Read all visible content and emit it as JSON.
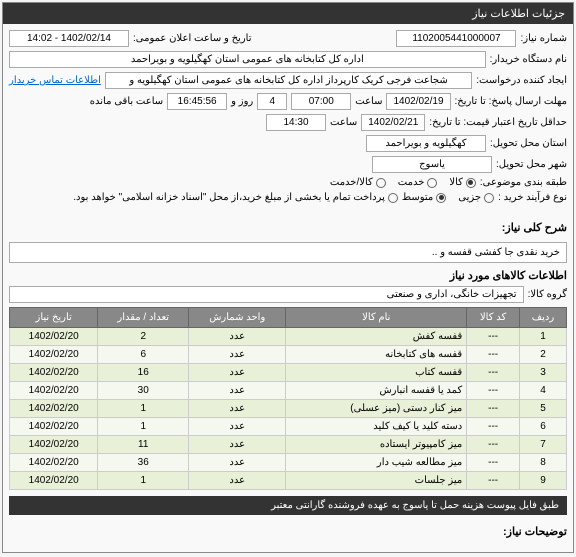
{
  "panel_title": "جزئیات اطلاعات نیاز",
  "fields": {
    "need_number_label": "شماره نیاز:",
    "need_number": "1102005441000007",
    "announce_label": "تاریخ و ساعت اعلان عمومی:",
    "announce_value": "1402/02/14 - 14:02",
    "buyer_label": "نام دستگاه خریدار:",
    "buyer_value": "اداره کل کتابخانه های عمومی استان کهگیلویه و بویراحمد",
    "creator_label": "ایجاد کننده درخواست:",
    "creator_value": "شجاعت فرجی کریک کارپرداز اداره کل کتابخانه های عمومی استان کهگیلویه و",
    "contact_link": "اطلاعات تماس خریدار",
    "deadline_label": "مهلت ارسال پاسخ: تا تاریخ:",
    "deadline_date": "1402/02/19",
    "time_label": "ساعت",
    "deadline_time": "07:00",
    "days_count": "4",
    "days_label": "روز و",
    "remaining_time": "16:45:56",
    "remaining_label": "ساعت باقی مانده",
    "validity_label": "حداقل تاریخ اعتبار قیمت: تا تاریخ:",
    "validity_date": "1402/02/21",
    "validity_time": "14:30",
    "province_label": "استان محل تحویل:",
    "province_value": "کهگیلویه و بویراحمد",
    "city_label": "شهر محل تحویل:",
    "city_value": "یاسوج",
    "category_label": "طبقه بندی موضوعی:",
    "cat_goods": "کالا",
    "cat_service": "خدمت",
    "cat_both": "کالا/خدمت",
    "process_label": "نوع فرآیند خرید :",
    "proc_small": "جزیی",
    "proc_medium": "متوسط",
    "proc_note": "پرداخت تمام یا بخشی از مبلغ خرید،از محل \"اسناد خزانه اسلامی\" خواهد بود.",
    "desc_label": "شرح کلی نیاز:",
    "desc_value": "خرید نقدی جا کفشی قفسه و ..",
    "goods_section": "اطلاعات کالاهای مورد نیاز",
    "group_label": "گروه کالا:",
    "group_value": "تجهیزات خانگی، اداری و صنعتی",
    "note_text": "طبق فایل پیوست  هزینه حمل تا یاسوج به عهده فروشنده گارانتی معتبر",
    "footer_label": "توضیحات نیاز:"
  },
  "table": {
    "headers": [
      "ردیف",
      "کد کالا",
      "نام کالا",
      "واحد شمارش",
      "تعداد / مقدار",
      "تاریخ نیاز"
    ],
    "rows": [
      [
        "1",
        "---",
        "قفسه کفش",
        "عدد",
        "2",
        "1402/02/20"
      ],
      [
        "2",
        "---",
        "قفسه های کتابخانه",
        "عدد",
        "6",
        "1402/02/20"
      ],
      [
        "3",
        "---",
        "قفسه کتاب",
        "عدد",
        "16",
        "1402/02/20"
      ],
      [
        "4",
        "---",
        "کمد یا قفسه انبارش",
        "عدد",
        "30",
        "1402/02/20"
      ],
      [
        "5",
        "---",
        "میز کنار دستی (میز عسلی)",
        "عدد",
        "1",
        "1402/02/20"
      ],
      [
        "6",
        "---",
        "دسته کلید یا کیف کلید",
        "عدد",
        "1",
        "1402/02/20"
      ],
      [
        "7",
        "---",
        "میز کامپیوتر ایستاده",
        "عدد",
        "11",
        "1402/02/20"
      ],
      [
        "8",
        "---",
        "میز مطالعه شیب دار",
        "عدد",
        "36",
        "1402/02/20"
      ],
      [
        "9",
        "---",
        "میز جلسات",
        "عدد",
        "1",
        "1402/02/20"
      ]
    ]
  }
}
